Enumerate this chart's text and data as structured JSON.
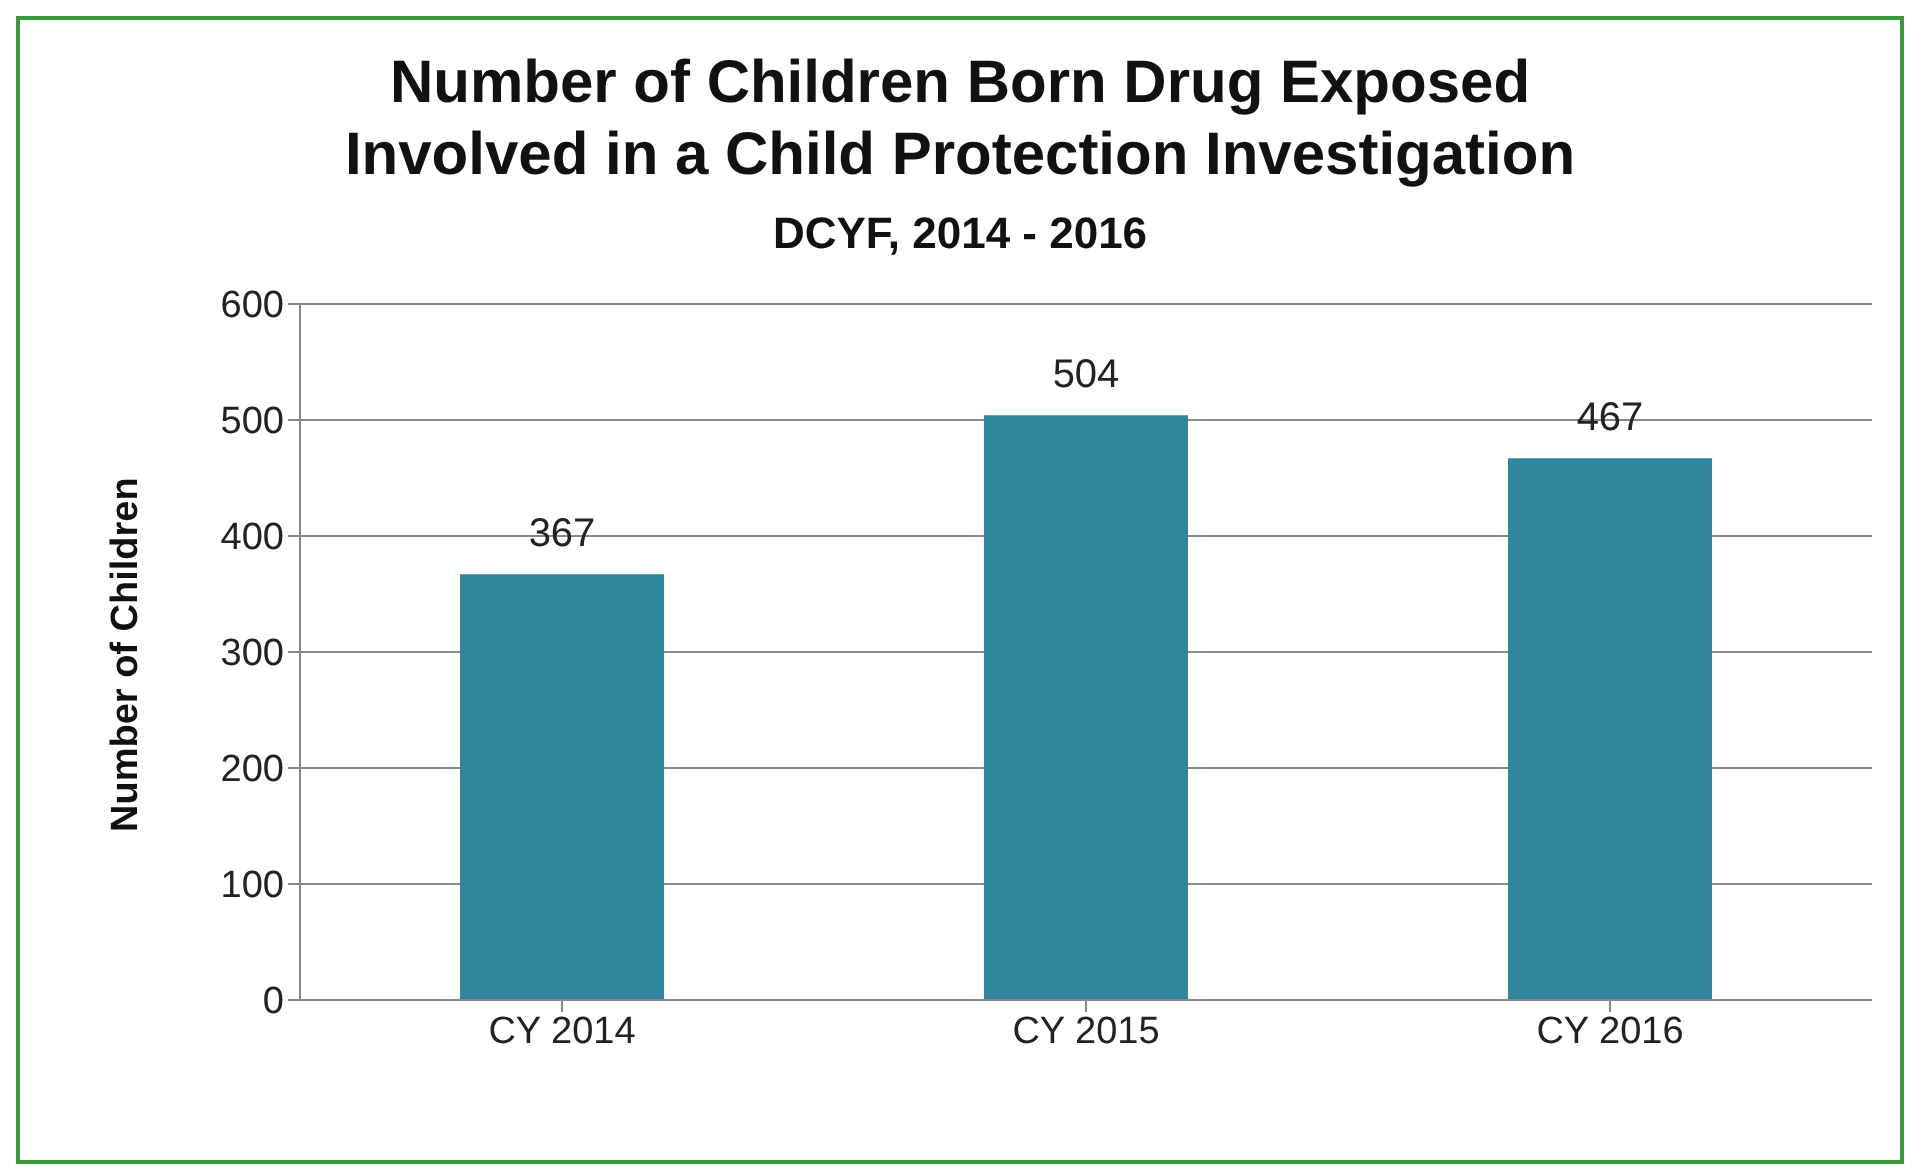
{
  "chart_data": {
    "type": "bar",
    "title": "Number of Children Born Drug Exposed Involved in a Child Protection Investigation",
    "subtitle": "DCYF, 2014 - 2016",
    "ylabel": "Number of Children",
    "categories": [
      "CY 2014",
      "CY 2015",
      "CY 2016"
    ],
    "values": [
      367,
      504,
      467
    ],
    "color": "#31859c",
    "ylim": [
      0,
      600
    ],
    "yticks": [
      0,
      100,
      200,
      300,
      400,
      500,
      600
    ],
    "grid": "y",
    "data_labels": true,
    "legend": false
  }
}
